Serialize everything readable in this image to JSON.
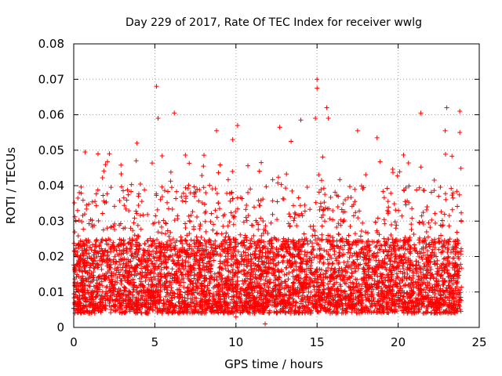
{
  "chart_data": {
    "type": "scatter",
    "title": "Day 229 of 2017, Rate Of TEC Index for receiver wwlg",
    "xlabel": "GPS time / hours",
    "ylabel": "ROTI / TECUs",
    "xlim": [
      0,
      25
    ],
    "ylim": [
      0,
      0.08
    ],
    "x_ticks": [
      0,
      5,
      10,
      15,
      20,
      25
    ],
    "x_tick_labels": [
      "0",
      "5",
      "10",
      "15",
      "20",
      "25"
    ],
    "y_ticks": [
      0,
      0.01,
      0.02,
      0.03,
      0.04,
      0.05,
      0.06,
      0.07,
      0.08
    ],
    "y_tick_labels": [
      "0",
      "0.01",
      "0.02",
      "0.03",
      "0.04",
      "0.05",
      "0.06",
      "0.07",
      "0.08"
    ],
    "grid": true,
    "marker": "+",
    "series": [
      {
        "name": "ROTI",
        "color": "#ff0000",
        "x_range": [
          0,
          23.9
        ],
        "baseline_range": [
          0.004,
          0.025
        ],
        "typical_max": 0.04,
        "notable_points": [
          {
            "x": 5.1,
            "y": 0.068
          },
          {
            "x": 15.0,
            "y": 0.07
          },
          {
            "x": 15.0,
            "y": 0.0675
          },
          {
            "x": 23.0,
            "y": 0.062
          },
          {
            "x": 15.6,
            "y": 0.062
          },
          {
            "x": 23.8,
            "y": 0.061
          },
          {
            "x": 6.2,
            "y": 0.0605
          },
          {
            "x": 21.4,
            "y": 0.0605
          },
          {
            "x": 5.2,
            "y": 0.059
          },
          {
            "x": 14.9,
            "y": 0.059
          },
          {
            "x": 15.7,
            "y": 0.059
          },
          {
            "x": 14.0,
            "y": 0.0585
          },
          {
            "x": 10.1,
            "y": 0.057
          },
          {
            "x": 12.7,
            "y": 0.0565
          },
          {
            "x": 8.8,
            "y": 0.0555
          },
          {
            "x": 17.5,
            "y": 0.0555
          },
          {
            "x": 22.9,
            "y": 0.0555
          },
          {
            "x": 23.8,
            "y": 0.055
          },
          {
            "x": 9.8,
            "y": 0.053
          },
          {
            "x": 13.4,
            "y": 0.0525
          },
          {
            "x": 2.2,
            "y": 0.049
          },
          {
            "x": 0.7,
            "y": 0.0495
          },
          {
            "x": 3.9,
            "y": 0.052
          },
          {
            "x": 18.7,
            "y": 0.0535
          },
          {
            "x": 11.8,
            "y": 0.001
          },
          {
            "x": 10.0,
            "y": 0.003
          }
        ]
      }
    ]
  }
}
